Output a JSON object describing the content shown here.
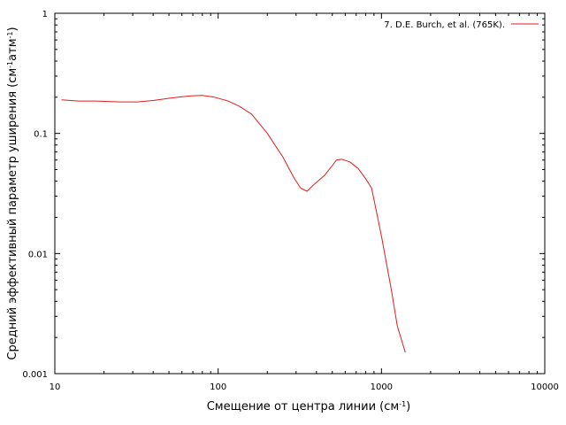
{
  "chart_data": {
    "type": "line",
    "title": "",
    "xscale": "log",
    "yscale": "log",
    "xlim": [
      10,
      10000
    ],
    "ylim": [
      0.001,
      1
    ],
    "grid": false,
    "legend_position": "top-right",
    "xlabel": {
      "main": "Смещение от центра линии (см",
      "sup": "-1",
      "tail": ")"
    },
    "ylabel": {
      "main": "Средний эффективный параметр уширения (см",
      "sup1": "-1",
      "mid": "атм",
      "sup2": "-1",
      "tail": ")"
    },
    "x_ticks": [
      {
        "value": 10,
        "label": "10"
      },
      {
        "value": 100,
        "label": "100"
      },
      {
        "value": 1000,
        "label": "1000"
      },
      {
        "value": 10000,
        "label": "10000"
      }
    ],
    "y_ticks": [
      {
        "value": 0.001,
        "label": "0.001"
      },
      {
        "value": 0.01,
        "label": "0.01"
      },
      {
        "value": 0.1,
        "label": "0.1"
      },
      {
        "value": 1,
        "label": "1"
      }
    ],
    "series": [
      {
        "name": "7. D.E. Burch, et al. (765K).",
        "color": "#e41a1c",
        "points": [
          [
            11,
            0.19
          ],
          [
            14,
            0.186
          ],
          [
            18,
            0.186
          ],
          [
            25,
            0.183
          ],
          [
            32,
            0.183
          ],
          [
            40,
            0.188
          ],
          [
            50,
            0.196
          ],
          [
            60,
            0.202
          ],
          [
            70,
            0.206
          ],
          [
            80,
            0.207
          ],
          [
            95,
            0.2
          ],
          [
            115,
            0.186
          ],
          [
            135,
            0.168
          ],
          [
            160,
            0.145
          ],
          [
            200,
            0.1
          ],
          [
            250,
            0.063
          ],
          [
            290,
            0.043
          ],
          [
            320,
            0.035
          ],
          [
            350,
            0.033
          ],
          [
            390,
            0.038
          ],
          [
            450,
            0.045
          ],
          [
            500,
            0.054
          ],
          [
            530,
            0.06
          ],
          [
            570,
            0.061
          ],
          [
            640,
            0.058
          ],
          [
            720,
            0.051
          ],
          [
            800,
            0.042
          ],
          [
            870,
            0.035
          ],
          [
            1000,
            0.014
          ],
          [
            1150,
            0.005
          ],
          [
            1250,
            0.0025
          ],
          [
            1400,
            0.0015
          ]
        ]
      }
    ]
  }
}
